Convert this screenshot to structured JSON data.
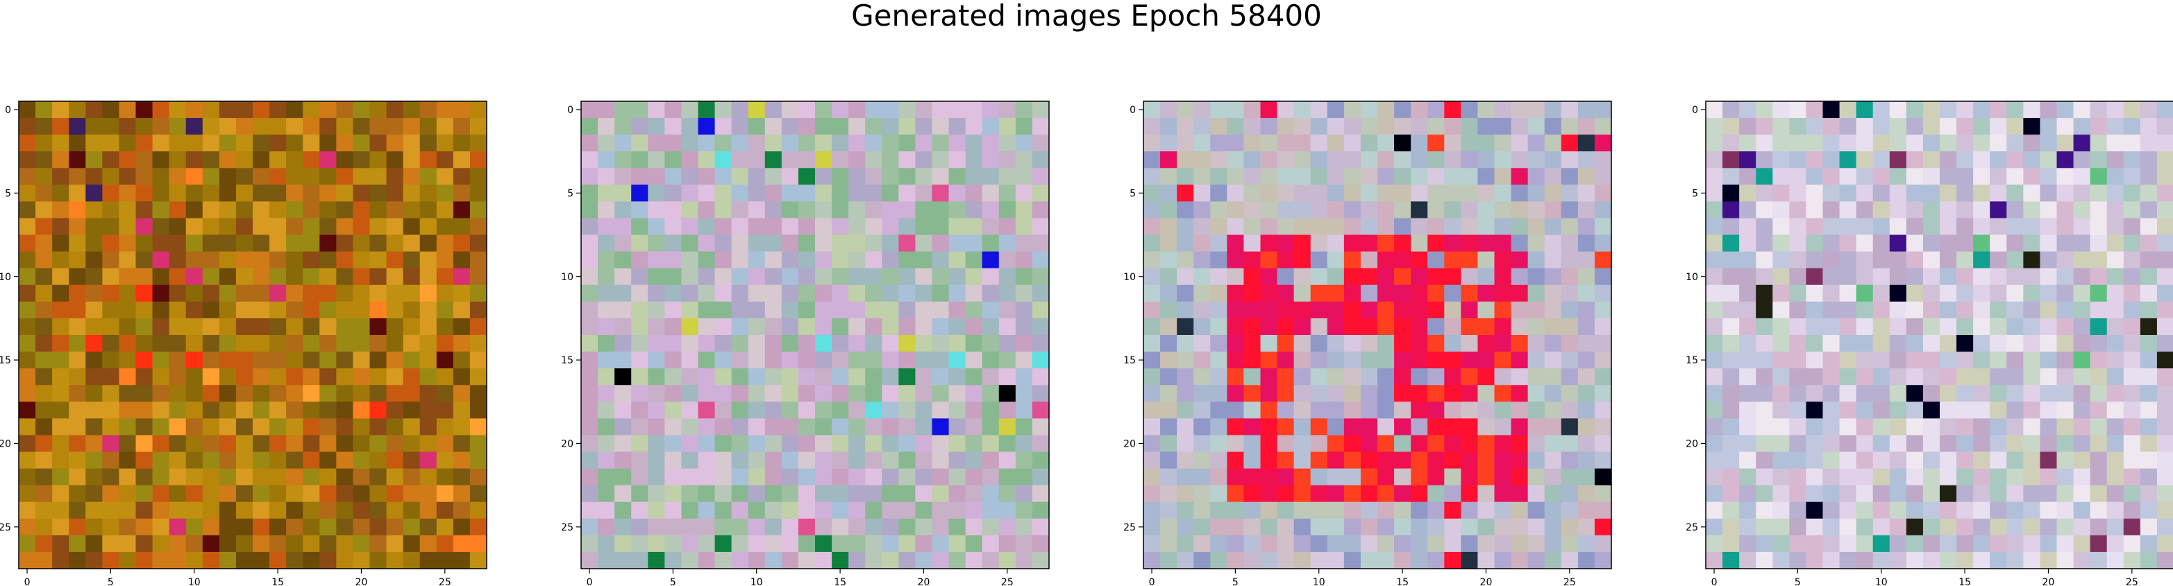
{
  "figure": {
    "title": "Generated images Epoch 58400"
  },
  "panels": [
    {
      "x_ticks": [
        "0",
        "5",
        "10",
        "15",
        "20",
        "25"
      ],
      "y_ticks": [
        "0",
        "5",
        "10",
        "15",
        "20",
        "25"
      ],
      "palette": [
        "#b8860b",
        "#c29010",
        "#a0780a",
        "#8a6a08",
        "#d07a18",
        "#7a5a10",
        "#b06a18",
        "#9a8a14",
        "#c85a10",
        "#6e4a08",
        "#d89a20",
        "#8c4a14"
      ],
      "accents": [
        "#ff3010",
        "#ff8020",
        "#3a2060",
        "#5a0a08",
        "#d83070",
        "#ffa030"
      ]
    },
    {
      "x_ticks": [
        "0",
        "5",
        "10",
        "15",
        "20",
        "25"
      ],
      "y_ticks": [
        "0",
        "5",
        "10",
        "15",
        "20",
        "25"
      ],
      "palette": [
        "#c8b0c8",
        "#b8c8b8",
        "#a8c0d8",
        "#d0b0d8",
        "#c0d0a8",
        "#e0c0e0",
        "#b0a8c8",
        "#9cc0a0",
        "#d8c8d0",
        "#88b890",
        "#c8a0c0",
        "#a0b8c0"
      ],
      "accents": [
        "#1010e0",
        "#000000",
        "#108040",
        "#e05090",
        "#60e0e0",
        "#d0d040"
      ]
    },
    {
      "x_ticks": [
        "0",
        "5",
        "10",
        "15",
        "20",
        "25"
      ],
      "y_ticks": [
        "0",
        "5",
        "10",
        "15",
        "20",
        "25"
      ],
      "palette": [
        "#c8b8d0",
        "#b8c0d8",
        "#d0c0c8",
        "#a8b8d0",
        "#c0c8b8",
        "#d8c8e0",
        "#b0a8d0",
        "#a0c0b8",
        "#c8c0b0",
        "#9098c8",
        "#d0b0c0",
        "#b8d0d0"
      ],
      "accents": [
        "#ff1030",
        "#f01050",
        "#ff4020",
        "#e81060",
        "#000010",
        "#203040"
      ]
    },
    {
      "x_ticks": [
        "0",
        "5",
        "10",
        "15",
        "20",
        "25"
      ],
      "y_ticks": [
        "0",
        "5",
        "10",
        "15",
        "20",
        "25"
      ],
      "palette": [
        "#d0c0d8",
        "#c0c8e0",
        "#e0d0e8",
        "#b8b0d0",
        "#c8d8c8",
        "#e8e0f0",
        "#b0c0d8",
        "#d8b8d0",
        "#c0a8c8",
        "#a8c8c0",
        "#d0d0b8",
        "#f0e8f0"
      ],
      "accents": [
        "#000020",
        "#40108a",
        "#10a090",
        "#803060",
        "#202010",
        "#60c080"
      ]
    }
  ]
}
